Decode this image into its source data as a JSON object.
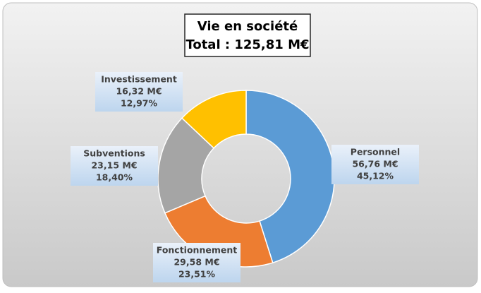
{
  "chart_data": {
    "type": "donut",
    "title": "Vie en société",
    "subtitle": "Total : 125,81 M€",
    "categories": [
      "Personnel",
      "Fonctionnement",
      "Subventions",
      "Investissement"
    ],
    "values": [
      56.76,
      29.58,
      23.15,
      16.32
    ],
    "value_labels": [
      "56,76 M€",
      "29,58 M€",
      "23,15 M€",
      "16,32 M€"
    ],
    "percentages": [
      45.12,
      23.51,
      18.4,
      12.97
    ],
    "percentage_labels": [
      "45,12%",
      "23,51%",
      "18,40%",
      "12,97%"
    ],
    "colors": [
      "#5b9bd5",
      "#ed7d31",
      "#a5a5a5",
      "#ffc000"
    ]
  }
}
